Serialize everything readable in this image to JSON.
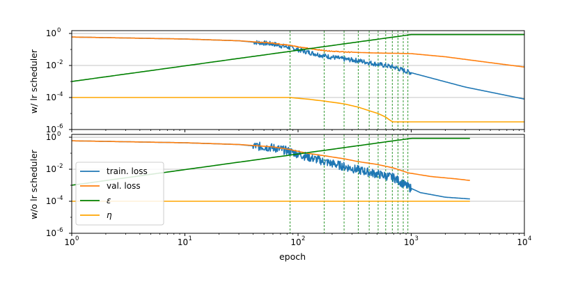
{
  "chart_data": [
    {
      "type": "line",
      "ylabel": "w/ lr scheduler",
      "xlabel": "",
      "xscale": "log",
      "yscale": "log",
      "xlim": [
        1,
        10000
      ],
      "ylim": [
        1e-06,
        1.5
      ],
      "grid": "horizontal",
      "vlines": [
        85,
        170,
        255,
        340,
        425,
        510,
        595,
        680,
        765,
        850,
        935
      ],
      "series": [
        {
          "name": "train. loss",
          "color": "#1f77b4",
          "x": [
            1,
            10,
            30,
            60,
            85,
            120,
            170,
            255,
            340,
            500,
            700,
            935,
            1200,
            3000,
            10000
          ],
          "y": [
            0.6,
            0.45,
            0.35,
            0.22,
            0.13,
            0.07,
            0.04,
            0.025,
            0.02,
            0.012,
            0.008,
            0.004,
            0.0025,
            0.00045,
            8e-05
          ]
        },
        {
          "name": "val. loss",
          "color": "#ff7f0e",
          "x": [
            1,
            10,
            30,
            60,
            85,
            120,
            170,
            255,
            340,
            500,
            700,
            1000,
            2000,
            5000,
            10000
          ],
          "y": [
            0.6,
            0.45,
            0.35,
            0.25,
            0.18,
            0.12,
            0.085,
            0.07,
            0.065,
            0.06,
            0.058,
            0.055,
            0.035,
            0.015,
            0.008
          ]
        },
        {
          "name": "ε",
          "color": "#008000",
          "x": [
            1,
            1000,
            10000
          ],
          "y": [
            0.001,
            0.85,
            0.85
          ]
        },
        {
          "name": "η",
          "color": "#ffa500",
          "x": [
            1,
            85,
            120,
            170,
            255,
            340,
            425,
            510,
            595,
            680,
            1000,
            10000
          ],
          "y": [
            0.0001,
            0.0001,
            8e-05,
            6e-05,
            4e-05,
            2.5e-05,
            1.5e-05,
            1e-05,
            6e-06,
            3e-06,
            3e-06,
            3e-06
          ]
        }
      ]
    },
    {
      "type": "line",
      "ylabel": "w/o lr scheduler",
      "xlabel": "epoch",
      "xscale": "log",
      "yscale": "log",
      "xlim": [
        1,
        10000
      ],
      "ylim": [
        1e-06,
        1.5
      ],
      "grid": "horizontal",
      "legend": "lower-left",
      "vlines": [
        85,
        170,
        255,
        340,
        425,
        510,
        595,
        680,
        765,
        850,
        935
      ],
      "series": [
        {
          "name": "train. loss",
          "color": "#1f77b4",
          "x": [
            1,
            10,
            30,
            60,
            85,
            120,
            170,
            255,
            340,
            500,
            700,
            935,
            1200,
            2000,
            3300
          ],
          "y": [
            0.6,
            0.45,
            0.35,
            0.22,
            0.13,
            0.06,
            0.03,
            0.015,
            0.009,
            0.005,
            0.003,
            0.0008,
            0.00035,
            0.00018,
            0.00014
          ]
        },
        {
          "name": "val. loss",
          "color": "#ff7f0e",
          "x": [
            1,
            10,
            30,
            60,
            85,
            120,
            170,
            255,
            340,
            500,
            700,
            935,
            1500,
            2500,
            3300
          ],
          "y": [
            0.6,
            0.45,
            0.35,
            0.25,
            0.17,
            0.1,
            0.07,
            0.045,
            0.03,
            0.02,
            0.012,
            0.006,
            0.0035,
            0.0025,
            0.002
          ]
        },
        {
          "name": "ε",
          "color": "#008000",
          "x": [
            1,
            1000,
            3300
          ],
          "y": [
            0.001,
            0.85,
            0.85
          ]
        },
        {
          "name": "η",
          "color": "#ffa500",
          "x": [
            1,
            3300
          ],
          "y": [
            0.0001,
            0.0001
          ]
        }
      ]
    }
  ],
  "xticks": [
    {
      "base": "10",
      "exp": "0",
      "value": 1
    },
    {
      "base": "10",
      "exp": "1",
      "value": 10
    },
    {
      "base": "10",
      "exp": "2",
      "value": 100
    },
    {
      "base": "10",
      "exp": "3",
      "value": 1000
    },
    {
      "base": "10",
      "exp": "4",
      "value": 10000
    }
  ],
  "yticks": [
    {
      "base": "10",
      "exp": "0",
      "value": 1
    },
    {
      "base": "10",
      "exp": "-2",
      "value": 0.01
    },
    {
      "base": "10",
      "exp": "-4",
      "value": 0.0001
    },
    {
      "base": "10",
      "exp": "-6",
      "value": 1e-06
    }
  ],
  "legend_entries": [
    "train. loss",
    "val. loss",
    "ε",
    "η"
  ],
  "colors": {
    "train": "#1f77b4",
    "val": "#ff7f0e",
    "eps": "#008000",
    "eta": "#ffa500",
    "grid": "#b0b0b0"
  }
}
